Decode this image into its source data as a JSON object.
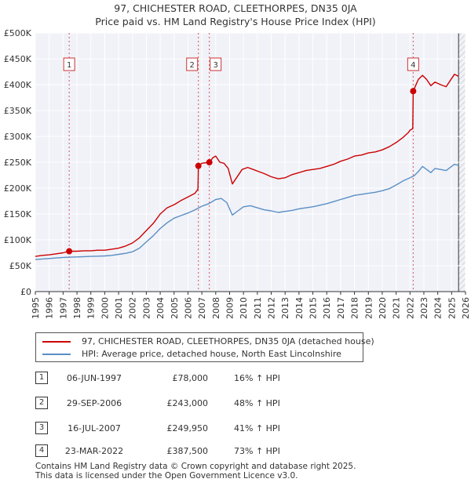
{
  "chart_data": {
    "type": "line",
    "title": "97, CHICHESTER ROAD, CLEETHORPES, DN35 0JA",
    "subtitle": "Price paid vs. HM Land Registry's House Price Index (HPI)",
    "xlabel": "",
    "ylabel": "",
    "xlim": [
      1995,
      2026
    ],
    "ylim": [
      0,
      500000
    ],
    "y_ticks": [
      {
        "value": 0,
        "label": "£0"
      },
      {
        "value": 50000,
        "label": "£50K"
      },
      {
        "value": 100000,
        "label": "£100K"
      },
      {
        "value": 150000,
        "label": "£150K"
      },
      {
        "value": 200000,
        "label": "£200K"
      },
      {
        "value": 250000,
        "label": "£250K"
      },
      {
        "value": 300000,
        "label": "£300K"
      },
      {
        "value": 350000,
        "label": "£350K"
      },
      {
        "value": 400000,
        "label": "£400K"
      },
      {
        "value": 450000,
        "label": "£450K"
      },
      {
        "value": 500000,
        "label": "£500K"
      }
    ],
    "x_ticks": [
      "1995",
      "1996",
      "1997",
      "1998",
      "1999",
      "2000",
      "2001",
      "2002",
      "2003",
      "2004",
      "2005",
      "2006",
      "2007",
      "2008",
      "2009",
      "2010",
      "2011",
      "2012",
      "2013",
      "2014",
      "2015",
      "2016",
      "2017",
      "2018",
      "2019",
      "2020",
      "2021",
      "2022",
      "2023",
      "2024",
      "2025",
      "2026"
    ],
    "grid": true,
    "legend_position": "below",
    "series": [
      {
        "name": "97, CHICHESTER ROAD, CLEETHORPES, DN35 0JA (detached house)",
        "color": "#cc0000",
        "points": [
          [
            1995.0,
            68000
          ],
          [
            1995.5,
            70000
          ],
          [
            1996.0,
            71000
          ],
          [
            1996.5,
            73000
          ],
          [
            1997.0,
            75000
          ],
          [
            1997.44,
            78000
          ],
          [
            1998.0,
            78000
          ],
          [
            1998.5,
            79000
          ],
          [
            1999.0,
            79000
          ],
          [
            1999.5,
            80000
          ],
          [
            2000.0,
            80000
          ],
          [
            2000.5,
            82000
          ],
          [
            2001.0,
            84000
          ],
          [
            2001.5,
            88000
          ],
          [
            2002.0,
            94000
          ],
          [
            2002.5,
            104000
          ],
          [
            2003.0,
            118000
          ],
          [
            2003.5,
            132000
          ],
          [
            2004.0,
            150000
          ],
          [
            2004.5,
            162000
          ],
          [
            2005.0,
            168000
          ],
          [
            2005.5,
            176000
          ],
          [
            2006.0,
            183000
          ],
          [
            2006.5,
            190000
          ],
          [
            2006.72,
            198000
          ],
          [
            2006.75,
            243000
          ],
          [
            2007.0,
            248000
          ],
          [
            2007.54,
            249950
          ],
          [
            2007.8,
            259000
          ],
          [
            2008.0,
            262000
          ],
          [
            2008.3,
            250000
          ],
          [
            2008.6,
            248000
          ],
          [
            2008.9,
            238000
          ],
          [
            2009.2,
            208000
          ],
          [
            2009.5,
            220000
          ],
          [
            2009.9,
            236000
          ],
          [
            2010.3,
            240000
          ],
          [
            2010.7,
            236000
          ],
          [
            2011.1,
            232000
          ],
          [
            2011.5,
            228000
          ],
          [
            2012.0,
            222000
          ],
          [
            2012.5,
            218000
          ],
          [
            2013.0,
            220000
          ],
          [
            2013.5,
            226000
          ],
          [
            2014.0,
            230000
          ],
          [
            2014.5,
            234000
          ],
          [
            2015.0,
            236000
          ],
          [
            2015.5,
            238000
          ],
          [
            2016.0,
            242000
          ],
          [
            2016.5,
            246000
          ],
          [
            2017.0,
            252000
          ],
          [
            2017.5,
            256000
          ],
          [
            2018.0,
            262000
          ],
          [
            2018.5,
            264000
          ],
          [
            2019.0,
            268000
          ],
          [
            2019.5,
            270000
          ],
          [
            2020.0,
            274000
          ],
          [
            2020.5,
            280000
          ],
          [
            2021.0,
            288000
          ],
          [
            2021.5,
            298000
          ],
          [
            2021.9,
            308000
          ],
          [
            2022.0,
            312000
          ],
          [
            2022.2,
            315000
          ],
          [
            2022.23,
            387500
          ],
          [
            2022.4,
            398000
          ],
          [
            2022.6,
            410000
          ],
          [
            2022.9,
            418000
          ],
          [
            2023.2,
            410000
          ],
          [
            2023.5,
            398000
          ],
          [
            2023.8,
            405000
          ],
          [
            2024.2,
            400000
          ],
          [
            2024.6,
            396000
          ],
          [
            2024.9,
            408000
          ],
          [
            2025.2,
            420000
          ],
          [
            2025.5,
            416000
          ]
        ]
      },
      {
        "name": "HPI: Average price, detached house, North East Lincolnshire",
        "color": "#5b8ec4",
        "points": [
          [
            1995.0,
            62000
          ],
          [
            1995.5,
            63000
          ],
          [
            1996.0,
            64000
          ],
          [
            1996.5,
            65000
          ],
          [
            1997.0,
            66000
          ],
          [
            1997.5,
            66500
          ],
          [
            1998.0,
            67000
          ],
          [
            1998.5,
            67500
          ],
          [
            1999.0,
            68000
          ],
          [
            1999.5,
            68500
          ],
          [
            2000.0,
            69000
          ],
          [
            2000.5,
            70000
          ],
          [
            2001.0,
            72000
          ],
          [
            2001.5,
            74000
          ],
          [
            2002.0,
            77000
          ],
          [
            2002.5,
            84000
          ],
          [
            2003.0,
            96000
          ],
          [
            2003.5,
            108000
          ],
          [
            2004.0,
            122000
          ],
          [
            2004.5,
            133000
          ],
          [
            2005.0,
            142000
          ],
          [
            2005.5,
            147000
          ],
          [
            2006.0,
            152000
          ],
          [
            2006.5,
            158000
          ],
          [
            2007.0,
            165000
          ],
          [
            2007.5,
            170000
          ],
          [
            2008.0,
            178000
          ],
          [
            2008.4,
            180000
          ],
          [
            2008.8,
            172000
          ],
          [
            2009.2,
            148000
          ],
          [
            2009.6,
            156000
          ],
          [
            2010.0,
            164000
          ],
          [
            2010.5,
            166000
          ],
          [
            2011.0,
            162000
          ],
          [
            2011.5,
            158000
          ],
          [
            2012.0,
            156000
          ],
          [
            2012.5,
            153000
          ],
          [
            2013.0,
            155000
          ],
          [
            2013.5,
            157000
          ],
          [
            2014.0,
            160000
          ],
          [
            2014.5,
            162000
          ],
          [
            2015.0,
            164000
          ],
          [
            2015.5,
            167000
          ],
          [
            2016.0,
            170000
          ],
          [
            2016.5,
            174000
          ],
          [
            2017.0,
            178000
          ],
          [
            2017.5,
            182000
          ],
          [
            2018.0,
            186000
          ],
          [
            2018.5,
            188000
          ],
          [
            2019.0,
            190000
          ],
          [
            2019.5,
            192000
          ],
          [
            2020.0,
            195000
          ],
          [
            2020.5,
            199000
          ],
          [
            2021.0,
            206000
          ],
          [
            2021.5,
            214000
          ],
          [
            2022.0,
            220000
          ],
          [
            2022.3,
            224000
          ],
          [
            2022.6,
            232000
          ],
          [
            2022.9,
            242000
          ],
          [
            2023.2,
            236000
          ],
          [
            2023.5,
            230000
          ],
          [
            2023.8,
            238000
          ],
          [
            2024.2,
            236000
          ],
          [
            2024.6,
            234000
          ],
          [
            2024.9,
            240000
          ],
          [
            2025.2,
            246000
          ],
          [
            2025.5,
            244000
          ]
        ]
      }
    ],
    "sale_points": [
      {
        "n": "1",
        "x": 1997.44,
        "value": 78000
      },
      {
        "n": "2",
        "x": 2006.75,
        "value": 243000
      },
      {
        "n": "3",
        "x": 2007.54,
        "value": 249950
      },
      {
        "n": "4",
        "x": 2022.23,
        "value": 387500
      }
    ],
    "annotation_labels": [
      "1",
      "2",
      "3",
      "4"
    ],
    "projection_start_x": 2025.5
  },
  "legend": {
    "items": [
      {
        "label": "97, CHICHESTER ROAD, CLEETHORPES, DN35 0JA (detached house)",
        "color": "#cc0000"
      },
      {
        "label": "HPI: Average price, detached house, North East Lincolnshire",
        "color": "#5b8ec4"
      }
    ]
  },
  "sales": [
    {
      "n": "1",
      "date": "06-JUN-1997",
      "price": "£78,000",
      "hpi": "16% ↑ HPI"
    },
    {
      "n": "2",
      "date": "29-SEP-2006",
      "price": "£243,000",
      "hpi": "48% ↑ HPI"
    },
    {
      "n": "3",
      "date": "16-JUL-2007",
      "price": "£249,950",
      "hpi": "41% ↑ HPI"
    },
    {
      "n": "4",
      "date": "23-MAR-2022",
      "price": "£387,500",
      "hpi": "73% ↑ HPI"
    }
  ],
  "footer": {
    "line1": "Contains HM Land Registry data © Crown copyright and database right 2025.",
    "line2": "This data is licensed under the Open Government Licence v3.0."
  }
}
